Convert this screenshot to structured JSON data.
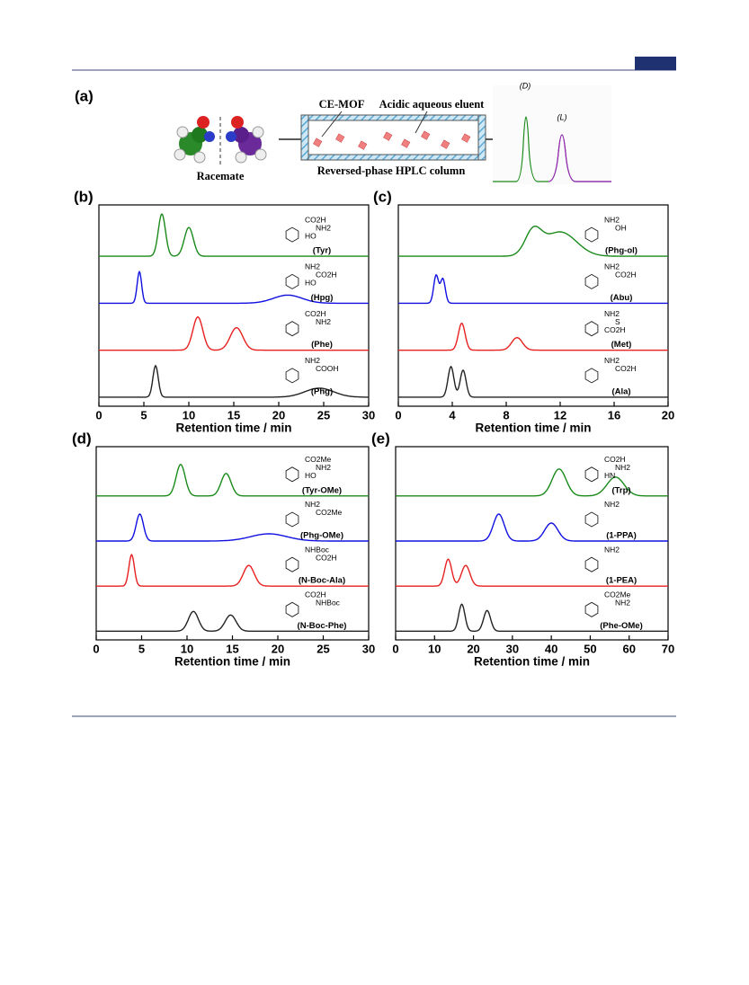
{
  "panel_a": {
    "label": "(a)",
    "racemate": "Racemate",
    "ce_mof": "CE-MOF",
    "eluent": "Acidic aqueous eluent",
    "column": "Reversed-phase HPLC column",
    "peak_d": "(D)",
    "peak_l": "(L)"
  },
  "chart_data": [
    {
      "type": "line",
      "panel_label": "(b)",
      "x_label": "Retention time / min",
      "xlim": [
        0,
        30
      ],
      "xticks": [
        0,
        5,
        10,
        15,
        20,
        25,
        30
      ],
      "series": [
        {
          "name": "(Tyr)",
          "color": "#1a8a1a",
          "fragments": [
            "CO2H",
            "NH2",
            "HO"
          ],
          "peaks": [
            {
              "t": 7,
              "h": 47,
              "w": 0.4
            },
            {
              "t": 10,
              "h": 32,
              "w": 0.5
            }
          ]
        },
        {
          "name": "(Hpg)",
          "color": "#1010e0",
          "fragments": [
            "NH2",
            "CO2H",
            "HO"
          ],
          "peaks": [
            {
              "t": 4.5,
              "h": 35,
              "w": 0.25
            },
            {
              "t": 21,
              "h": 9,
              "w": 1.6
            }
          ]
        },
        {
          "name": "(Phe)",
          "color": "#e82020",
          "fragments": [
            "CO2H",
            "NH2"
          ],
          "peaks": [
            {
              "t": 11,
              "h": 37,
              "w": 0.55
            },
            {
              "t": 15.3,
              "h": 25,
              "w": 0.7
            }
          ]
        },
        {
          "name": "(Phg)",
          "color": "#222222",
          "fragments": [
            "NH2",
            "COOH"
          ],
          "peaks": [
            {
              "t": 6.3,
              "h": 35,
              "w": 0.3
            },
            {
              "t": 24.5,
              "h": 10,
              "w": 1.6
            }
          ]
        }
      ]
    },
    {
      "type": "line",
      "panel_label": "(c)",
      "x_label": "Retention time / min",
      "xlim": [
        0,
        20
      ],
      "xticks": [
        0,
        4,
        8,
        12,
        16,
        20
      ],
      "series": [
        {
          "name": "(Phg-ol)",
          "color": "#1a8a1a",
          "fragments": [
            "NH2",
            "OH"
          ],
          "peaks": [
            {
              "t": 10,
              "h": 26,
              "w": 0.6
            },
            {
              "t": 12,
              "h": 27,
              "w": 1.2
            }
          ]
        },
        {
          "name": "(Abu)",
          "color": "#1010e0",
          "fragments": [
            "NH2",
            "CO2H"
          ],
          "peaks": [
            {
              "t": 2.8,
              "h": 31,
              "w": 0.18
            },
            {
              "t": 3.3,
              "h": 27,
              "w": 0.18
            }
          ]
        },
        {
          "name": "(Met)",
          "color": "#e82020",
          "fragments": [
            "NH2",
            "S",
            "CO2H"
          ],
          "peaks": [
            {
              "t": 4.7,
              "h": 30,
              "w": 0.25
            },
            {
              "t": 8.8,
              "h": 14,
              "w": 0.4
            }
          ]
        },
        {
          "name": "(Ala)",
          "color": "#222222",
          "fragments": [
            "NH2",
            "CO2H"
          ],
          "peaks": [
            {
              "t": 3.9,
              "h": 34,
              "w": 0.22
            },
            {
              "t": 4.8,
              "h": 30,
              "w": 0.22
            }
          ]
        }
      ]
    },
    {
      "type": "line",
      "panel_label": "(d)",
      "x_label": "Retention time / min",
      "xlim": [
        0,
        30
      ],
      "xticks": [
        0,
        5,
        10,
        15,
        20,
        25,
        30
      ],
      "series": [
        {
          "name": "(Tyr-OMe)",
          "color": "#1a8a1a",
          "fragments": [
            "CO2Me",
            "NH2",
            "HO"
          ],
          "peaks": [
            {
              "t": 9.3,
              "h": 35,
              "w": 0.5
            },
            {
              "t": 14.3,
              "h": 25,
              "w": 0.55
            }
          ]
        },
        {
          "name": "(Phg-OMe)",
          "color": "#1010e0",
          "fragments": [
            "NH2",
            "CO2Me"
          ],
          "peaks": [
            {
              "t": 4.8,
              "h": 30,
              "w": 0.4
            },
            {
              "t": 19,
              "h": 8,
              "w": 2
            }
          ]
        },
        {
          "name": "(N-Boc-Ala)",
          "color": "#e82020",
          "fragments": [
            "NHBoc",
            "CO2H"
          ],
          "peaks": [
            {
              "t": 3.9,
              "h": 35,
              "w": 0.3
            },
            {
              "t": 16.8,
              "h": 23,
              "w": 0.6
            }
          ]
        },
        {
          "name": "(N-Boc-Phe)",
          "color": "#222222",
          "fragments": [
            "CO2H",
            "NHBoc"
          ],
          "peaks": [
            {
              "t": 10.7,
              "h": 22,
              "w": 0.55
            },
            {
              "t": 14.8,
              "h": 18,
              "w": 0.6
            }
          ]
        }
      ]
    },
    {
      "type": "line",
      "panel_label": "(e)",
      "x_label": "Retention time / min",
      "xlim": [
        0,
        70
      ],
      "xticks": [
        0,
        10,
        20,
        30,
        40,
        50,
        60,
        70
      ],
      "series": [
        {
          "name": "(Trp)",
          "color": "#1a8a1a",
          "fragments": [
            "CO2H",
            "NH2",
            "HN"
          ],
          "peaks": [
            {
              "t": 42,
              "h": 30,
              "w": 1.8
            },
            {
              "t": 56.5,
              "h": 21,
              "w": 2.2
            }
          ]
        },
        {
          "name": "(1-PPA)",
          "color": "#1010e0",
          "fragments": [
            "NH2"
          ],
          "peaks": [
            {
              "t": 26.5,
              "h": 30,
              "w": 1.4
            },
            {
              "t": 40,
              "h": 20,
              "w": 1.7
            }
          ]
        },
        {
          "name": "(1-PEA)",
          "color": "#e82020",
          "fragments": [
            "NH2"
          ],
          "peaks": [
            {
              "t": 13.5,
              "h": 30,
              "w": 0.9
            },
            {
              "t": 18,
              "h": 23,
              "w": 1.1
            }
          ]
        },
        {
          "name": "(Phe-OMe)",
          "color": "#222222",
          "fragments": [
            "CO2Me",
            "NH2"
          ],
          "peaks": [
            {
              "t": 17,
              "h": 30,
              "w": 0.8
            },
            {
              "t": 23.5,
              "h": 23,
              "w": 0.9
            }
          ]
        }
      ]
    }
  ]
}
